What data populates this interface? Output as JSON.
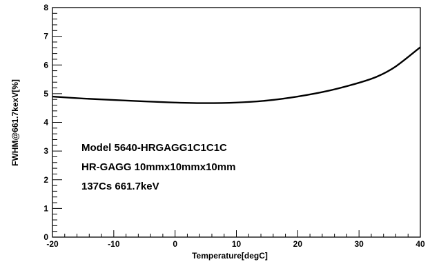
{
  "chart_data": {
    "type": "line",
    "title": "",
    "xlabel": "Temperature[degC]",
    "ylabel": "FWHM@661.7kexV[%]",
    "xlim": [
      -20,
      40
    ],
    "ylim": [
      0,
      8
    ],
    "xticks": [
      -20,
      -10,
      0,
      10,
      20,
      30,
      40
    ],
    "yticks": [
      0,
      1,
      2,
      3,
      4,
      5,
      6,
      7,
      8
    ],
    "grid": false,
    "legend": "none",
    "series": [
      {
        "color": "#000000",
        "x": [
          -20,
          -15,
          -10,
          -5,
          0,
          5,
          10,
          15,
          20,
          25,
          30,
          33,
          36,
          40
        ],
        "y": [
          4.9,
          4.83,
          4.78,
          4.73,
          4.69,
          4.67,
          4.69,
          4.76,
          4.9,
          5.1,
          5.38,
          5.6,
          5.95,
          6.62
        ]
      }
    ],
    "annotations": [
      "Model 5640-HRGAGG1C1C1C",
      "HR-GAGG 10mmx10mmx10mm",
      "137Cs 661.7keV"
    ]
  }
}
